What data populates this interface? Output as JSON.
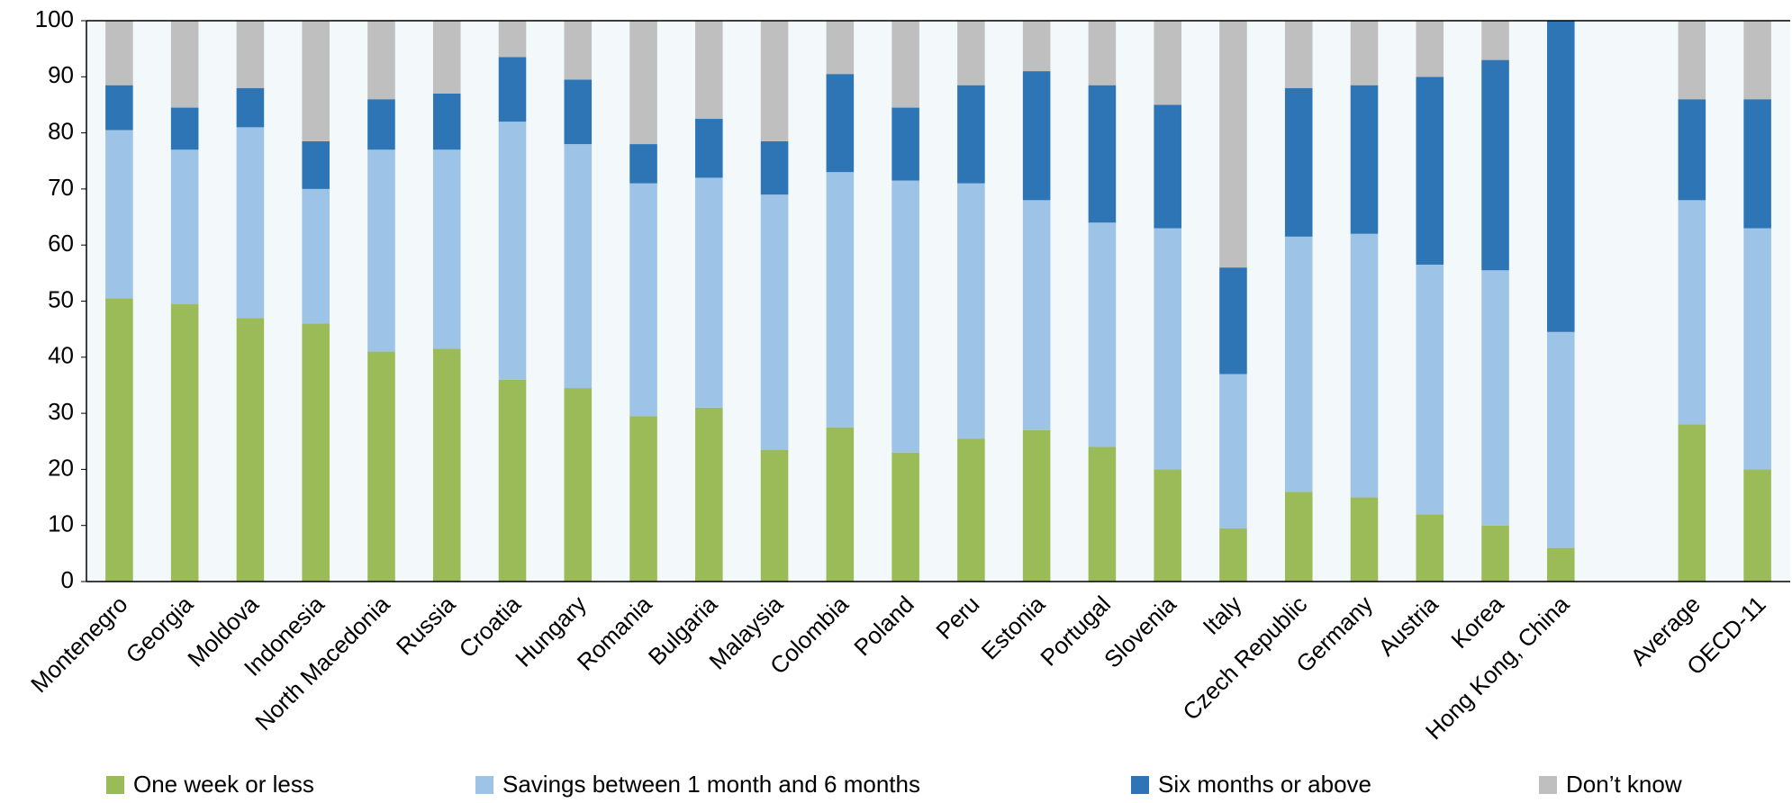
{
  "chart_data": {
    "type": "stacked_bar",
    "categories": [
      "Montenegro",
      "Georgia",
      "Moldova",
      "Indonesia",
      "North Macedonia",
      "Russia",
      "Croatia",
      "Hungary",
      "Romania",
      "Bulgaria",
      "Malaysia",
      "Colombia",
      "Poland",
      "Peru",
      "Estonia",
      "Portugal",
      "Slovenia",
      "Italy",
      "Czech Republic",
      "Germany",
      "Austria",
      "Korea",
      "Hong Kong, China",
      null,
      "Average",
      "OECD-11"
    ],
    "series": [
      {
        "name": "One week or less",
        "color": "#9bbb59",
        "values": [
          50.5,
          49.5,
          47,
          46,
          41,
          41.5,
          36,
          34.5,
          29.5,
          31,
          23.5,
          27.5,
          23,
          25.5,
          27,
          24,
          20,
          9.5,
          16,
          15,
          12,
          10,
          6,
          null,
          28,
          20
        ]
      },
      {
        "name": "Savings between 1 month and 6 months",
        "color": "#9dc3e6",
        "values": [
          30,
          27.5,
          34,
          24,
          36,
          35.5,
          46,
          43.5,
          41.5,
          41,
          45.5,
          45.5,
          48.5,
          45.5,
          41,
          40,
          43,
          27.5,
          45.5,
          47,
          44.5,
          45.5,
          38.5,
          null,
          40,
          43
        ]
      },
      {
        "name": "Six months or above",
        "color": "#2e75b6",
        "values": [
          8,
          7.5,
          7,
          8.5,
          9,
          10,
          11.5,
          11.5,
          7,
          10.5,
          9.5,
          17.5,
          13,
          17.5,
          23,
          24.5,
          22,
          19,
          26.5,
          26.5,
          33.5,
          37.5,
          55.5,
          null,
          18,
          23
        ]
      },
      {
        "name": "Don’t know",
        "color": "#bfbfbf",
        "values": [
          11.5,
          15.5,
          12,
          21.5,
          14,
          13,
          6.5,
          10.5,
          22,
          17.5,
          21.5,
          9.5,
          15.5,
          11.5,
          9,
          11.5,
          15,
          44,
          12,
          11.5,
          10,
          7,
          0,
          null,
          14,
          14
        ]
      }
    ],
    "ylim": [
      0,
      100
    ],
    "yticks": [
      0,
      10,
      20,
      30,
      40,
      50,
      60,
      70,
      80,
      90,
      100
    ],
    "grid": false,
    "legend": "bottom"
  }
}
